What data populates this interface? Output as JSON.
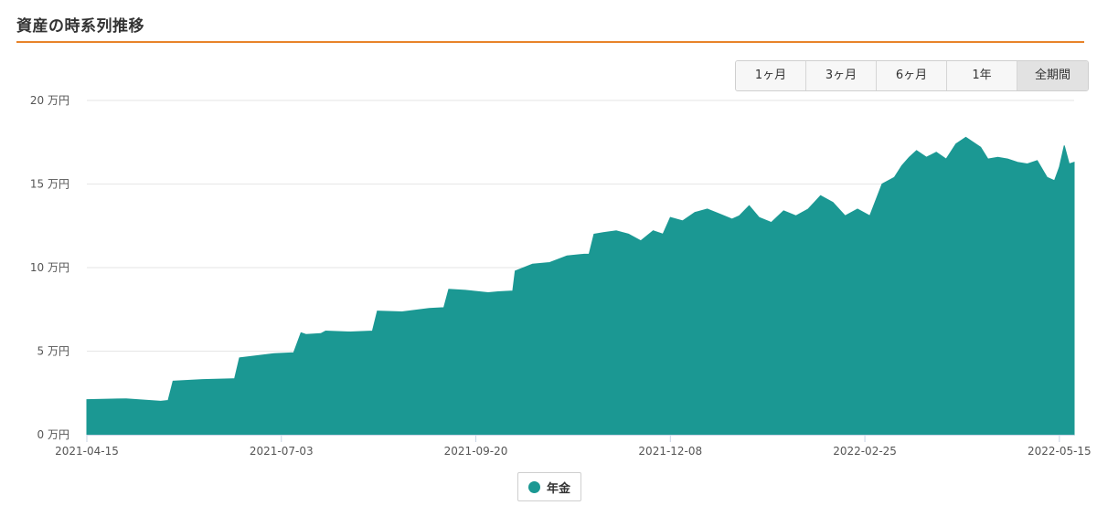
{
  "header": {
    "title": "資産の時系列推移",
    "accent_color": "#e8842a"
  },
  "range_buttons": [
    {
      "label": "1ヶ月",
      "active": false
    },
    {
      "label": "3ヶ月",
      "active": false
    },
    {
      "label": "6ヶ月",
      "active": false
    },
    {
      "label": "1年",
      "active": false
    },
    {
      "label": "全期間",
      "active": true
    }
  ],
  "chart_data": {
    "type": "area",
    "title": "",
    "xlabel": "",
    "ylabel": "",
    "y_unit": "万円",
    "ylim": [
      0,
      20
    ],
    "xlim": [
      "2021-04-15",
      "2022-05-21"
    ],
    "y_ticks": [
      "0 万円",
      "5 万円",
      "10 万円",
      "15 万円",
      "20 万円"
    ],
    "x_ticks": [
      "2021-04-15",
      "2021-07-03",
      "2021-09-20",
      "2021-12-08",
      "2022-02-25",
      "2022-05-15"
    ],
    "grid": true,
    "legend_position": "bottom-center",
    "series": [
      {
        "name": "年金",
        "color": "#1b9893",
        "x": [
          "2021-04-15",
          "2021-05-01",
          "2021-05-15",
          "2021-05-18",
          "2021-05-20",
          "2021-06-01",
          "2021-06-14",
          "2021-06-16",
          "2021-06-30",
          "2021-07-08",
          "2021-07-11",
          "2021-07-13",
          "2021-07-19",
          "2021-07-21",
          "2021-07-31",
          "2021-08-09",
          "2021-08-11",
          "2021-08-21",
          "2021-09-01",
          "2021-09-07",
          "2021-09-09",
          "2021-09-15",
          "2021-09-25",
          "2021-09-29",
          "2021-10-05",
          "2021-10-06",
          "2021-10-13",
          "2021-10-20",
          "2021-10-27",
          "2021-11-03",
          "2021-11-05",
          "2021-11-07",
          "2021-11-11",
          "2021-11-16",
          "2021-11-21",
          "2021-11-26",
          "2021-12-01",
          "2021-12-05",
          "2021-12-08",
          "2021-12-13",
          "2021-12-18",
          "2021-12-23",
          "2021-12-28",
          "2022-01-02",
          "2022-01-05",
          "2022-01-09",
          "2022-01-13",
          "2022-01-18",
          "2022-01-23",
          "2022-01-28",
          "2022-02-02",
          "2022-02-07",
          "2022-02-12",
          "2022-02-17",
          "2022-02-22",
          "2022-02-27",
          "2022-03-04",
          "2022-03-09",
          "2022-03-12",
          "2022-03-15",
          "2022-03-18",
          "2022-03-22",
          "2022-03-26",
          "2022-03-30",
          "2022-04-03",
          "2022-04-07",
          "2022-04-10",
          "2022-04-13",
          "2022-04-16",
          "2022-04-20",
          "2022-04-24",
          "2022-04-28",
          "2022-05-02",
          "2022-05-06",
          "2022-05-10",
          "2022-05-13",
          "2022-05-15",
          "2022-05-17",
          "2022-05-19",
          "2022-05-21"
        ],
        "values": [
          2.1,
          2.15,
          2.0,
          2.05,
          3.2,
          3.3,
          3.35,
          4.6,
          4.85,
          4.9,
          6.1,
          6.0,
          6.05,
          6.2,
          6.15,
          6.2,
          7.4,
          7.35,
          7.55,
          7.6,
          8.7,
          8.65,
          8.5,
          8.55,
          8.6,
          9.8,
          10.2,
          10.3,
          10.7,
          10.8,
          10.8,
          12.0,
          12.1,
          12.2,
          12.0,
          11.6,
          12.2,
          12.0,
          13.0,
          12.8,
          13.3,
          13.5,
          13.2,
          12.9,
          13.1,
          13.7,
          13.0,
          12.7,
          13.4,
          13.1,
          13.5,
          14.3,
          13.9,
          13.1,
          13.5,
          13.1,
          15.0,
          15.4,
          16.1,
          16.6,
          17.0,
          16.6,
          16.9,
          16.5,
          17.4,
          17.8,
          17.5,
          17.2,
          16.5,
          16.6,
          16.5,
          16.3,
          16.2,
          16.4,
          15.4,
          15.2,
          16.0,
          17.3,
          16.2,
          16.3
        ]
      }
    ]
  }
}
